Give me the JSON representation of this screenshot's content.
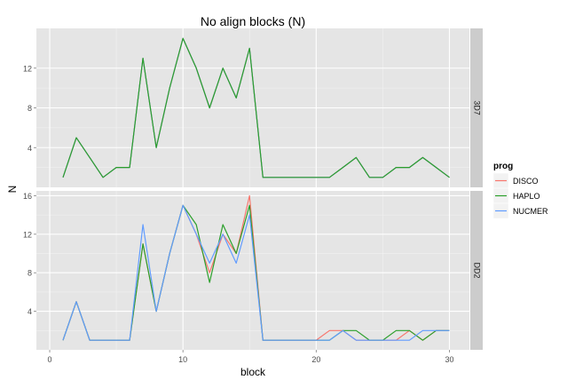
{
  "chart_data": {
    "type": "line",
    "title": "No align blocks (N)",
    "xlabel": "block",
    "ylabel": "N",
    "xlim": [
      -1,
      31.5
    ],
    "x_ticks": [
      0,
      10,
      20,
      30
    ],
    "grid": true,
    "legend": {
      "title": "prog",
      "placement": "right",
      "entries": [
        "DISCO",
        "HAPLO",
        "NUCMER"
      ]
    },
    "colors": {
      "DISCO": "#F8766D",
      "HAPLO": "#2CA02C",
      "NUCMER": "#619CFF"
    },
    "facets": [
      {
        "label": "3D7",
        "ylim": [
          0,
          16
        ],
        "y_ticks": [
          4,
          8,
          12
        ],
        "series": [
          {
            "name": "DISCO",
            "x": [
              1,
              2,
              3,
              4,
              5,
              6,
              7,
              8,
              9,
              10,
              11,
              12,
              13,
              14,
              15,
              16,
              17,
              18,
              19,
              20,
              21,
              22,
              23,
              24,
              25,
              26,
              27,
              28,
              29,
              30
            ],
            "y": [
              1,
              5,
              3,
              1,
              2,
              2,
              13,
              4,
              10,
              15,
              12,
              8,
              12,
              9,
              14,
              1,
              1,
              1,
              1,
              1,
              1,
              2,
              3,
              1,
              1,
              2,
              2,
              3,
              2,
              1
            ]
          },
          {
            "name": "NUCMER",
            "x": [
              1,
              2,
              3,
              4,
              5,
              6,
              7,
              8,
              9,
              10,
              11,
              12,
              13,
              14,
              15,
              16,
              17,
              18,
              19,
              20,
              21,
              22,
              23,
              24,
              25,
              26,
              27,
              28,
              29,
              30
            ],
            "y": [
              1,
              5,
              3,
              1,
              2,
              2,
              13,
              4,
              10,
              15,
              12,
              8,
              12,
              9,
              14,
              1,
              1,
              1,
              1,
              1,
              1,
              2,
              3,
              1,
              1,
              2,
              2,
              3,
              2,
              1
            ]
          },
          {
            "name": "HAPLO",
            "x": [
              1,
              2,
              3,
              4,
              5,
              6,
              7,
              8,
              9,
              10,
              11,
              12,
              13,
              14,
              15,
              16,
              17,
              18,
              19,
              20,
              21,
              22,
              23,
              24,
              25,
              26,
              27,
              28,
              29,
              30
            ],
            "y": [
              1,
              5,
              3,
              1,
              2,
              2,
              13,
              4,
              10,
              15,
              12,
              8,
              12,
              9,
              14,
              1,
              1,
              1,
              1,
              1,
              1,
              2,
              3,
              1,
              1,
              2,
              2,
              3,
              2,
              1
            ]
          }
        ]
      },
      {
        "label": "DD2",
        "ylim": [
          0,
          16.5
        ],
        "y_ticks": [
          4,
          8,
          12,
          16
        ],
        "series": [
          {
            "name": "DISCO",
            "x": [
              1,
              2,
              3,
              4,
              5,
              6,
              7,
              8,
              9,
              10,
              11,
              12,
              13,
              14,
              15,
              16,
              17,
              18,
              19,
              20,
              21,
              22,
              23,
              24,
              25,
              26,
              27,
              28,
              29,
              30
            ],
            "y": [
              1,
              5,
              1,
              1,
              1,
              1,
              11,
              4,
              10,
              15,
              12,
              8,
              12,
              10,
              16,
              1,
              1,
              1,
              1,
              1,
              2,
              2,
              1,
              1,
              1,
              1,
              2,
              1,
              2,
              2
            ]
          },
          {
            "name": "HAPLO",
            "x": [
              1,
              2,
              3,
              4,
              5,
              6,
              7,
              8,
              9,
              10,
              11,
              12,
              13,
              14,
              15,
              16,
              17,
              18,
              19,
              20,
              21,
              22,
              23,
              24,
              25,
              26,
              27,
              28,
              29,
              30
            ],
            "y": [
              1,
              5,
              1,
              1,
              1,
              1,
              11,
              4,
              10,
              15,
              13,
              7,
              13,
              10,
              15,
              1,
              1,
              1,
              1,
              1,
              1,
              2,
              2,
              1,
              1,
              2,
              2,
              1,
              2,
              2
            ]
          },
          {
            "name": "NUCMER",
            "x": [
              1,
              2,
              3,
              4,
              5,
              6,
              7,
              8,
              9,
              10,
              11,
              12,
              13,
              14,
              15,
              16,
              17,
              18,
              19,
              20,
              21,
              22,
              23,
              24,
              25,
              26,
              27,
              28,
              29,
              30
            ],
            "y": [
              1,
              5,
              1,
              1,
              1,
              1,
              13,
              4,
              10,
              15,
              12,
              9,
              12,
              9,
              14,
              1,
              1,
              1,
              1,
              1,
              1,
              2,
              1,
              1,
              1,
              1,
              1,
              2,
              2,
              2
            ]
          }
        ]
      }
    ]
  }
}
